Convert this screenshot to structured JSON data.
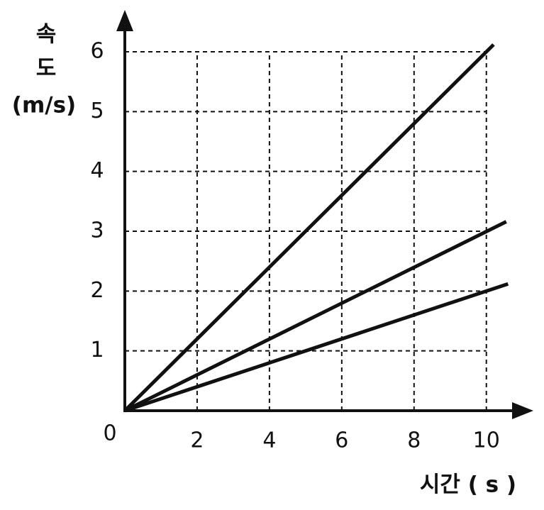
{
  "chart_data": {
    "type": "line",
    "xlabel": "시간 ( s )",
    "ylabel": [
      "속",
      "도",
      "(m/s)"
    ],
    "xlim": [
      0,
      11.3
    ],
    "ylim": [
      0,
      6.7
    ],
    "xticks": [
      0,
      2,
      4,
      6,
      8,
      10
    ],
    "yticks": [
      1,
      2,
      3,
      4,
      5,
      6
    ],
    "grid": true,
    "series": [
      {
        "color": "#111111",
        "x": [
          0,
          10.2
        ],
        "values": [
          0,
          6.12
        ]
      },
      {
        "color": "#111111",
        "x": [
          0,
          10.55
        ],
        "values": [
          0,
          3.16
        ]
      },
      {
        "color": "#111111",
        "x": [
          0,
          10.6
        ],
        "values": [
          0,
          2.12
        ]
      }
    ]
  }
}
